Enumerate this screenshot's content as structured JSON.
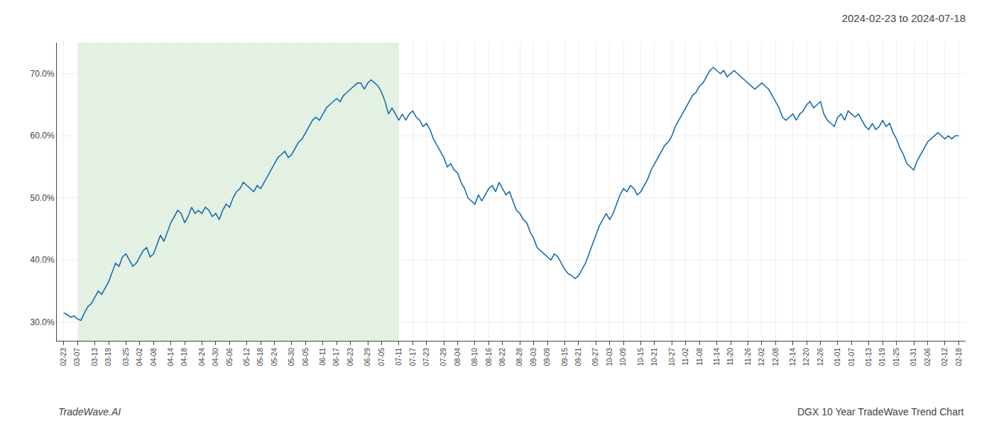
{
  "chart_data": {
    "type": "line",
    "title": "2024-02-23 to 2024-07-18",
    "annotations": [
      "TradeWave.AI",
      "DGX 10 Year TradeWave Trend Chart"
    ],
    "color": "#1a6fad",
    "grid": true,
    "shaded": {
      "from": "03-07",
      "to": "07-11",
      "color": "#d4ead4"
    },
    "ylim": [
      27.0,
      75.0
    ],
    "yticks": [
      {
        "value": 30.0,
        "label": "30.0%"
      },
      {
        "value": 40.0,
        "label": "40.0%"
      },
      {
        "value": 50.0,
        "label": "50.0%"
      },
      {
        "value": 60.0,
        "label": "60.0%"
      },
      {
        "value": 70.0,
        "label": "70.0%"
      }
    ],
    "categories": [
      "02-23",
      null,
      null,
      null,
      "03-07",
      null,
      null,
      null,
      null,
      "03-13",
      null,
      null,
      null,
      "03-19",
      null,
      null,
      null,
      null,
      "03-25",
      null,
      null,
      null,
      "04-02",
      null,
      null,
      null,
      "04-08",
      null,
      null,
      null,
      null,
      "04-14",
      null,
      null,
      null,
      "04-18",
      null,
      null,
      null,
      null,
      "04-24",
      null,
      null,
      null,
      "04-30",
      null,
      null,
      null,
      "05-06",
      null,
      null,
      null,
      null,
      "05-12",
      null,
      null,
      null,
      "05-18",
      null,
      null,
      null,
      "05-24",
      null,
      null,
      null,
      null,
      "05-30",
      null,
      null,
      null,
      "06-05",
      null,
      null,
      null,
      null,
      "06-11",
      null,
      null,
      null,
      "06-17",
      null,
      null,
      null,
      "06-23",
      null,
      null,
      null,
      null,
      "06-29",
      null,
      null,
      null,
      "07-05",
      null,
      null,
      null,
      null,
      "07-11",
      null,
      null,
      null,
      "07-17",
      null,
      null,
      null,
      "07-23",
      null,
      null,
      null,
      null,
      "07-29",
      null,
      null,
      null,
      "08-04",
      null,
      null,
      null,
      null,
      "08-10",
      null,
      null,
      null,
      "08-16",
      null,
      null,
      null,
      "08-22",
      null,
      null,
      null,
      null,
      "08-28",
      null,
      null,
      null,
      "09-03",
      null,
      null,
      null,
      "09-09",
      null,
      null,
      null,
      null,
      "09-15",
      null,
      null,
      null,
      "09-21",
      null,
      null,
      null,
      null,
      "09-27",
      null,
      null,
      null,
      "10-03",
      null,
      null,
      null,
      "10-09",
      null,
      null,
      null,
      null,
      "10-15",
      null,
      null,
      null,
      "10-21",
      null,
      null,
      null,
      null,
      "10-27",
      null,
      null,
      null,
      "11-02",
      null,
      null,
      null,
      "11-08",
      null,
      null,
      null,
      null,
      "11-14",
      null,
      null,
      null,
      "11-20",
      null,
      null,
      null,
      null,
      "11-26",
      null,
      null,
      null,
      "12-02",
      null,
      null,
      null,
      "12-08",
      null,
      null,
      null,
      null,
      "12-14",
      null,
      null,
      null,
      "12-20",
      null,
      null,
      null,
      "12-26",
      null,
      null,
      null,
      null,
      "01-01",
      null,
      null,
      null,
      "01-07",
      null,
      null,
      null,
      null,
      "01-13",
      null,
      null,
      null,
      "01-19",
      null,
      null,
      null,
      "01-25",
      null,
      null,
      null,
      null,
      "01-31",
      null,
      null,
      null,
      "02-06",
      null,
      null,
      null,
      null,
      "02-12",
      null,
      null,
      null,
      "02-18"
    ],
    "values": [
      31.5,
      31.2,
      30.8,
      31.0,
      30.5,
      30.3,
      31.5,
      32.5,
      33.0,
      34.0,
      35.0,
      34.5,
      35.5,
      36.5,
      38.0,
      39.5,
      39.0,
      40.5,
      41.0,
      40.0,
      39.0,
      39.5,
      40.5,
      41.5,
      42.0,
      40.5,
      41.0,
      42.5,
      44.0,
      43.0,
      44.5,
      46.0,
      47.0,
      48.0,
      47.5,
      46.0,
      47.0,
      48.5,
      47.5,
      48.0,
      47.5,
      48.5,
      48.0,
      47.0,
      47.5,
      46.5,
      48.0,
      49.0,
      48.5,
      50.0,
      51.0,
      51.5,
      52.5,
      52.0,
      51.5,
      51.0,
      52.0,
      51.5,
      52.5,
      53.5,
      54.5,
      55.5,
      56.5,
      57.0,
      57.5,
      56.5,
      57.0,
      58.0,
      59.0,
      59.5,
      60.5,
      61.5,
      62.5,
      63.0,
      62.5,
      63.5,
      64.5,
      65.0,
      65.5,
      66.0,
      65.5,
      66.5,
      67.0,
      67.5,
      68.0,
      68.5,
      68.5,
      67.5,
      68.5,
      69.0,
      68.5,
      68.0,
      67.0,
      65.5,
      63.5,
      64.5,
      63.5,
      62.5,
      63.5,
      62.5,
      63.5,
      64.0,
      63.0,
      62.5,
      61.5,
      62.0,
      61.0,
      59.5,
      58.5,
      57.5,
      56.5,
      55.0,
      55.5,
      54.5,
      54.0,
      52.5,
      51.5,
      50.0,
      49.5,
      49.0,
      50.5,
      49.5,
      50.5,
      51.5,
      52.0,
      51.0,
      52.5,
      51.5,
      50.5,
      51.0,
      49.5,
      48.0,
      47.5,
      46.5,
      46.0,
      44.5,
      43.5,
      42.0,
      41.5,
      41.0,
      40.5,
      40.0,
      41.0,
      40.5,
      39.5,
      38.5,
      37.8,
      37.5,
      37.0,
      37.5,
      38.5,
      39.5,
      41.0,
      42.5,
      44.0,
      45.5,
      46.5,
      47.5,
      46.5,
      47.5,
      49.0,
      50.5,
      51.5,
      51.0,
      52.0,
      51.5,
      50.5,
      51.0,
      52.0,
      53.0,
      54.5,
      55.5,
      56.5,
      57.5,
      58.5,
      59.0,
      60.0,
      61.5,
      62.5,
      63.5,
      64.5,
      65.5,
      66.5,
      67.0,
      68.0,
      68.5,
      69.5,
      70.5,
      71.0,
      70.5,
      70.0,
      70.5,
      69.5,
      70.0,
      70.5,
      70.0,
      69.5,
      69.0,
      68.5,
      68.0,
      67.5,
      68.0,
      68.5,
      68.0,
      67.5,
      66.5,
      65.5,
      64.5,
      63.0,
      62.5,
      63.0,
      63.5,
      62.5,
      63.5,
      64.0,
      65.0,
      65.5,
      64.5,
      65.0,
      65.5,
      63.5,
      62.5,
      62.0,
      61.5,
      63.0,
      63.5,
      62.5,
      64.0,
      63.5,
      63.0,
      63.5,
      62.5,
      61.5,
      61.0,
      62.0,
      61.0,
      61.5,
      62.5,
      61.5,
      62.0,
      60.5,
      59.5,
      58.0,
      57.0,
      55.5,
      55.0,
      54.5,
      56.0,
      57.0,
      58.0,
      59.0,
      59.5,
      60.0,
      60.5,
      60.0,
      59.5,
      60.0,
      59.5,
      60.0,
      60.0
    ]
  }
}
